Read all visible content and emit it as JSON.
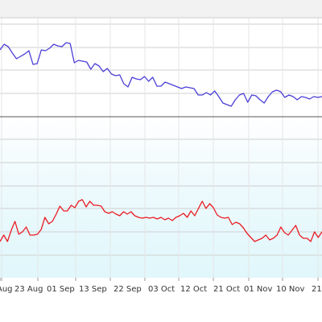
{
  "chart_data": {
    "type": "line",
    "title": "",
    "xlabel": "",
    "ylabel": "",
    "x_tick_labels": [
      "Aug",
      "23 Aug",
      "01 Sep",
      "13 Sep",
      "22 Sep",
      "03 Oct",
      "12 Oct",
      "21 Oct",
      "01 Nov",
      "10 Nov",
      "21"
    ],
    "grid": true,
    "reference_line": true,
    "series": [
      {
        "color": "#4b3fd6",
        "values": [
          62,
          55,
          58,
          66,
          73,
          70,
          67,
          63,
          80,
          79,
          62,
          63,
          60,
          55,
          57,
          58,
          53,
          54,
          78,
          75,
          76,
          77,
          86,
          79,
          82,
          89,
          85,
          92,
          94,
          93,
          104,
          108,
          96,
          98,
          99,
          95,
          101,
          96,
          107,
          107,
          102,
          104,
          106,
          108,
          110,
          108,
          109,
          110,
          118,
          118,
          115,
          118,
          113,
          120,
          128,
          130,
          132,
          124,
          118,
          116,
          127,
          118,
          119,
          124,
          128,
          120,
          114,
          112,
          114,
          121,
          118,
          120,
          124,
          120,
          121,
          123,
          120,
          121,
          120
        ]
      },
      {
        "color": "#ea1c24",
        "values": [
          300,
          292,
          300,
          286,
          275,
          291,
          288,
          282,
          292,
          292,
          291,
          285,
          270,
          278,
          275,
          266,
          256,
          262,
          262,
          255,
          258,
          250,
          248,
          257,
          250,
          255,
          255,
          256,
          263,
          265,
          263,
          266,
          268,
          263,
          266,
          263,
          268,
          270,
          271,
          270,
          271,
          270,
          272,
          270,
          273,
          271,
          274,
          270,
          268,
          265,
          270,
          262,
          268,
          259,
          250,
          259,
          253,
          258,
          267,
          270,
          271,
          270,
          279,
          276,
          278,
          283,
          290,
          295,
          300,
          298,
          296,
          292,
          298,
          296,
          292,
          282,
          289,
          292,
          286,
          280,
          292,
          296,
          296,
          300,
          288,
          295,
          288
        ]
      }
    ]
  }
}
